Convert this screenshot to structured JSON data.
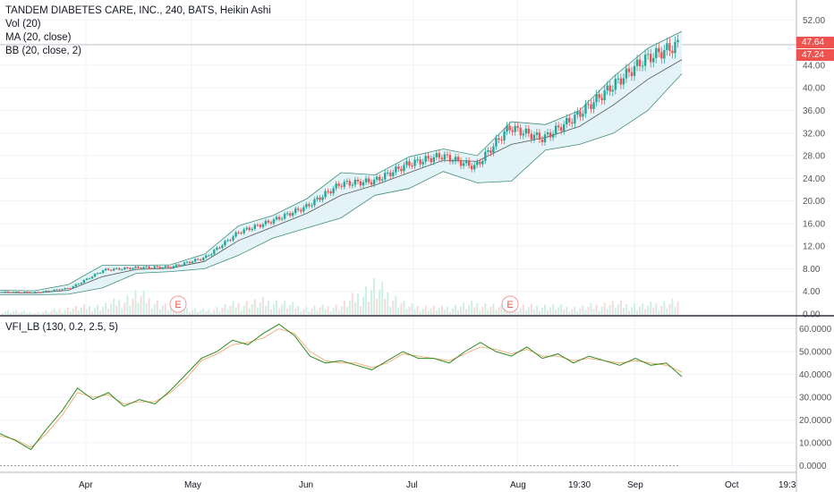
{
  "legend": {
    "title": "TANDEM DIABETES CARE, INC., 240, BATS, Heikin Ashi",
    "vol": "Vol (20)",
    "ma": "MA (20, close)",
    "bb": "BB (20, close, 2)",
    "vfi": "VFI_LB (130, 0.2, 2.5, 5)"
  },
  "price_badges": [
    "47.64",
    "47.24"
  ],
  "time_cursor": "19:30",
  "events": [
    {
      "x": "Apr 29",
      "label": "E"
    },
    {
      "x": "Jul 30",
      "label": "E"
    }
  ],
  "colors": {
    "up": "#26a69a",
    "down": "#ef5350",
    "bb_fill": "#e3f3f7",
    "bb_line": "#3e8f79",
    "ma_line": "#555555",
    "vfi_line": "#2e8b1e",
    "vfi_signal": "#f0a060"
  },
  "chart_data": [
    {
      "type": "candlestick",
      "pane": "price",
      "x_tick_labels": [
        "Apr",
        "May",
        "Jun",
        "Jul",
        "Aug",
        "Sep",
        "Oct",
        "19:3"
      ],
      "y_tick_labels": [
        "0.00",
        "4.00",
        "8.00",
        "12.00",
        "16.00",
        "20.00",
        "24.00",
        "28.00",
        "32.00",
        "36.00",
        "40.00",
        "44.00",
        "52.00"
      ],
      "ylim": [
        0,
        54
      ],
      "grid": true,
      "last_close": 47.64,
      "series": [
        {
          "name": "Price",
          "x": [
            0,
            10,
            20,
            30,
            40,
            50,
            60,
            70,
            80,
            90,
            100,
            110,
            120,
            130,
            140,
            150,
            155,
            160,
            165,
            170,
            175
          ],
          "values": [
            3.9,
            3.8,
            4.6,
            7.8,
            8.2,
            8.3,
            10.0,
            14.5,
            16.5,
            19.0,
            23.0,
            23.5,
            26.5,
            28.0,
            26.0,
            33.0,
            31.0,
            35.0,
            40.0,
            45.0,
            47.6
          ]
        },
        {
          "name": "MA",
          "values": [
            3.8,
            3.7,
            4.2,
            6.6,
            7.9,
            8.1,
            9.3,
            13.0,
            15.4,
            17.8,
            21.0,
            22.8,
            25.0,
            27.2,
            27.0,
            30.0,
            31.2,
            33.2,
            37.0,
            41.5,
            45.0
          ]
        },
        {
          "name": "BB upper",
          "values": [
            4.2,
            4.1,
            5.2,
            8.6,
            8.6,
            8.7,
            10.6,
            15.6,
            17.4,
            20.4,
            25.0,
            24.6,
            27.8,
            29.2,
            28.0,
            34.0,
            33.5,
            36.0,
            42.0,
            47.0,
            50.0
          ]
        },
        {
          "name": "BB lower",
          "values": [
            3.4,
            3.4,
            3.5,
            4.6,
            7.2,
            7.5,
            8.0,
            10.4,
            13.4,
            15.2,
            17.0,
            21.0,
            22.2,
            25.2,
            23.2,
            23.5,
            29.0,
            30.0,
            32.0,
            36.0,
            42.5
          ]
        }
      ]
    },
    {
      "type": "bar",
      "pane": "volume",
      "series": [
        {
          "name": "Vol (20)",
          "values": [
            2,
            1,
            3,
            4,
            9,
            3,
            2,
            5,
            6,
            3,
            4,
            13,
            4,
            3,
            5,
            3,
            4,
            3,
            5,
            4,
            6
          ]
        }
      ]
    },
    {
      "type": "line",
      "pane": "indicator",
      "title": "VFI_LB (130, 0.2, 2.5, 5)",
      "y_tick_labels": [
        "0.0000",
        "10.0000",
        "20.0000",
        "30.0000",
        "40.0000",
        "50.0000",
        "60.0000"
      ],
      "ylim": [
        -2,
        63
      ],
      "x": [
        0,
        4,
        8,
        12,
        16,
        20,
        24,
        28,
        32,
        36,
        40,
        44,
        48,
        52,
        56,
        60,
        64,
        68,
        72,
        76,
        80,
        84,
        88,
        92,
        96,
        100,
        104,
        108,
        112,
        116,
        120,
        124,
        128,
        132,
        136,
        140,
        144,
        148,
        152,
        156,
        160,
        164,
        168,
        172,
        176
      ],
      "series": [
        {
          "name": "VFI",
          "values": [
            14,
            11,
            7,
            16,
            24,
            34,
            29,
            32,
            26,
            29,
            27,
            33,
            40,
            47,
            50,
            55,
            53,
            58,
            62,
            57,
            48,
            45,
            46,
            44,
            42,
            46,
            50,
            47,
            47,
            45,
            50,
            54,
            50,
            48,
            52,
            47,
            49,
            45,
            48,
            46,
            44,
            47,
            44,
            45,
            39
          ]
        },
        {
          "name": "Signal",
          "values": [
            13,
            11.5,
            8,
            14,
            22,
            32,
            30,
            31,
            27,
            28,
            28,
            32,
            38,
            46,
            49,
            53,
            54,
            56,
            60,
            58,
            50,
            46,
            45,
            45,
            43,
            45,
            49,
            48,
            47,
            46,
            49,
            52,
            51,
            49,
            51,
            48,
            48,
            46,
            47,
            46,
            45,
            46,
            45,
            44,
            41
          ]
        }
      ]
    }
  ]
}
